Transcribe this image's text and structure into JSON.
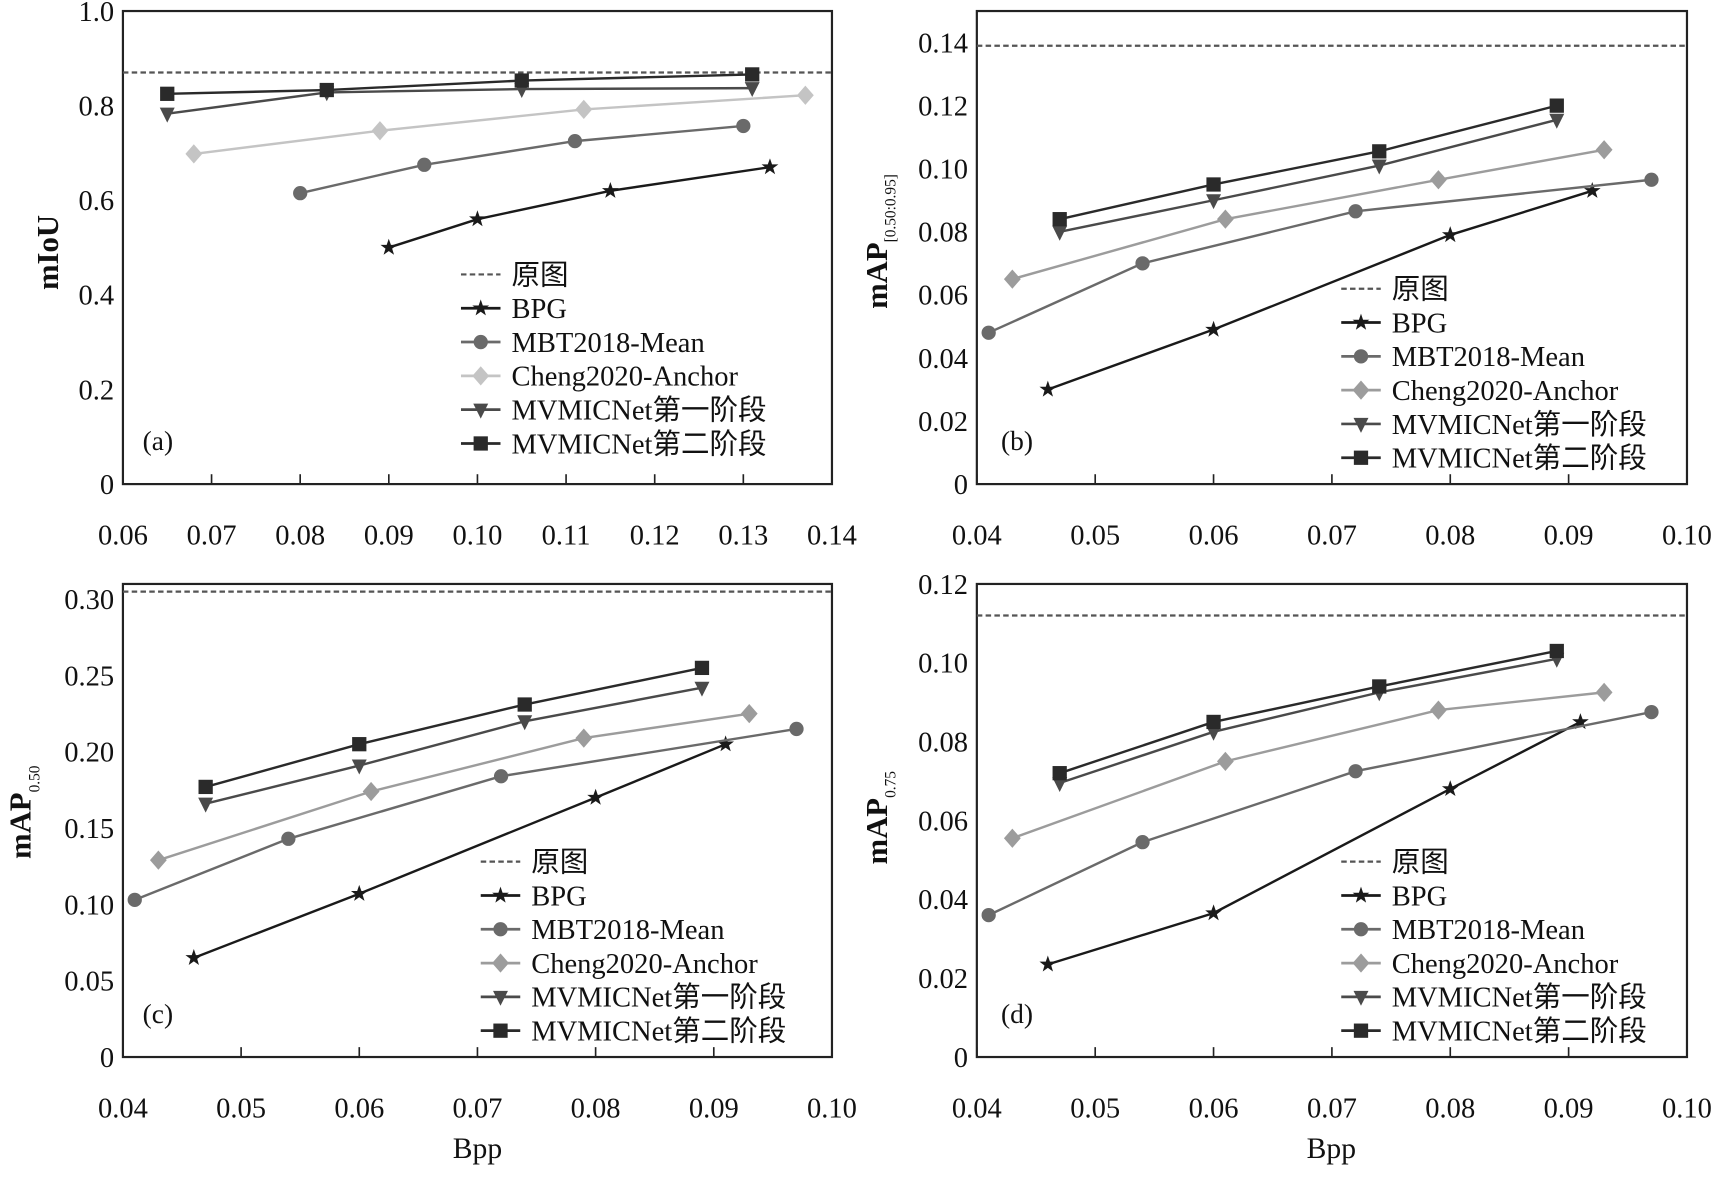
{
  "chart_data": [
    {
      "type": "line",
      "panel_label": "(a)",
      "ylabel": "mIoU",
      "ylabel_sub": "",
      "xlabel": "",
      "xlim": [
        0.06,
        0.14
      ],
      "ylim": [
        0,
        1.0
      ],
      "xticks": [
        "0.06",
        "0.07",
        "0.08",
        "0.09",
        "0.10",
        "0.11",
        "0.12",
        "0.13",
        "0.14"
      ],
      "yticks": [
        "0",
        "0.2",
        "0.4",
        "0.6",
        "0.8",
        "1.0"
      ],
      "yticks_values": [
        0,
        0.2,
        0.4,
        0.6,
        0.8,
        1.0
      ],
      "reference": {
        "name": "原图",
        "value": 0.87
      },
      "series": [
        {
          "name": "BPG",
          "marker": "star",
          "color": "#1a1a1a",
          "x": [
            0.09,
            0.1,
            0.115,
            0.133
          ],
          "y": [
            0.5,
            0.56,
            0.62,
            0.67
          ]
        },
        {
          "name": "MBT2018-Mean",
          "marker": "circle",
          "color": "#6a6a6a",
          "x": [
            0.08,
            0.094,
            0.111,
            0.13
          ],
          "y": [
            0.615,
            0.675,
            0.725,
            0.757
          ]
        },
        {
          "name": "Cheng2020-Anchor",
          "marker": "diamond",
          "color": "#c4c4c4",
          "x": [
            0.068,
            0.089,
            0.112,
            0.137
          ],
          "y": [
            0.698,
            0.747,
            0.792,
            0.822
          ]
        },
        {
          "name": "MVMICNet第一阶段",
          "marker": "triangle-down",
          "color": "#4a4a4a",
          "x": [
            0.065,
            0.083,
            0.105,
            0.131
          ],
          "y": [
            0.783,
            0.828,
            0.835,
            0.837
          ]
        },
        {
          "name": "MVMICNet第二阶段",
          "marker": "square",
          "color": "#2a2a2a",
          "x": [
            0.065,
            0.083,
            0.105,
            0.131
          ],
          "y": [
            0.825,
            0.833,
            0.853,
            0.866
          ]
        }
      ]
    },
    {
      "type": "line",
      "panel_label": "(b)",
      "ylabel": "mAP",
      "ylabel_sub": "[0.50:0.95]",
      "xlabel": "",
      "xlim": [
        0.04,
        0.1
      ],
      "ylim": [
        0,
        0.15
      ],
      "xticks": [
        "0.04",
        "0.05",
        "0.06",
        "0.07",
        "0.08",
        "0.09",
        "0.10"
      ],
      "yticks": [
        "0",
        "0.02",
        "0.04",
        "0.06",
        "0.08",
        "0.10",
        "0.12",
        "0.14"
      ],
      "yticks_values": [
        0,
        0.02,
        0.04,
        0.06,
        0.08,
        0.1,
        0.12,
        0.14
      ],
      "reference": {
        "name": "原图",
        "value": 0.139
      },
      "series": [
        {
          "name": "BPG",
          "marker": "star",
          "color": "#1a1a1a",
          "x": [
            0.046,
            0.06,
            0.08,
            0.092
          ],
          "y": [
            0.03,
            0.049,
            0.079,
            0.093
          ]
        },
        {
          "name": "MBT2018-Mean",
          "marker": "circle",
          "color": "#6a6a6a",
          "x": [
            0.041,
            0.054,
            0.072,
            0.097
          ],
          "y": [
            0.048,
            0.07,
            0.0865,
            0.0965
          ]
        },
        {
          "name": "Cheng2020-Anchor",
          "marker": "diamond",
          "color": "#9c9c9c",
          "x": [
            0.043,
            0.061,
            0.079,
            0.093
          ],
          "y": [
            0.065,
            0.084,
            0.0965,
            0.106
          ]
        },
        {
          "name": "MVMICNet第一阶段",
          "marker": "triangle-down",
          "color": "#4a4a4a",
          "x": [
            0.047,
            0.06,
            0.074,
            0.089
          ],
          "y": [
            0.08,
            0.09,
            0.101,
            0.1155
          ]
        },
        {
          "name": "MVMICNet第二阶段",
          "marker": "square",
          "color": "#2a2a2a",
          "x": [
            0.047,
            0.06,
            0.074,
            0.089
          ],
          "y": [
            0.084,
            0.095,
            0.1055,
            0.12
          ]
        }
      ]
    },
    {
      "type": "line",
      "panel_label": "(c)",
      "ylabel": "mAP",
      "ylabel_sub": "0.50",
      "xlabel": "Bpp",
      "xlim": [
        0.04,
        0.1
      ],
      "ylim": [
        0,
        0.31
      ],
      "xticks": [
        "0.04",
        "0.05",
        "0.06",
        "0.07",
        "0.08",
        "0.09",
        "0.10"
      ],
      "yticks": [
        "0",
        "0.05",
        "0.10",
        "0.15",
        "0.20",
        "0.25",
        "0.30"
      ],
      "yticks_values": [
        0,
        0.05,
        0.1,
        0.15,
        0.2,
        0.25,
        0.3
      ],
      "reference": {
        "name": "原图",
        "value": 0.305
      },
      "series": [
        {
          "name": "BPG",
          "marker": "star",
          "color": "#1a1a1a",
          "x": [
            0.046,
            0.06,
            0.08,
            0.091
          ],
          "y": [
            0.065,
            0.107,
            0.17,
            0.205
          ]
        },
        {
          "name": "MBT2018-Mean",
          "marker": "circle",
          "color": "#6a6a6a",
          "x": [
            0.041,
            0.054,
            0.072,
            0.097
          ],
          "y": [
            0.103,
            0.143,
            0.184,
            0.215
          ]
        },
        {
          "name": "Cheng2020-Anchor",
          "marker": "diamond",
          "color": "#9c9c9c",
          "x": [
            0.043,
            0.061,
            0.079,
            0.093
          ],
          "y": [
            0.129,
            0.174,
            0.209,
            0.225
          ]
        },
        {
          "name": "MVMICNet第一阶段",
          "marker": "triangle-down",
          "color": "#4a4a4a",
          "x": [
            0.047,
            0.06,
            0.074,
            0.089
          ],
          "y": [
            0.166,
            0.191,
            0.22,
            0.242
          ]
        },
        {
          "name": "MVMICNet第二阶段",
          "marker": "square",
          "color": "#2a2a2a",
          "x": [
            0.047,
            0.06,
            0.074,
            0.089
          ],
          "y": [
            0.177,
            0.205,
            0.231,
            0.255
          ]
        }
      ]
    },
    {
      "type": "line",
      "panel_label": "(d)",
      "ylabel": "mAP",
      "ylabel_sub": "0.75",
      "xlabel": "Bpp",
      "xlim": [
        0.04,
        0.1
      ],
      "ylim": [
        0,
        0.12
      ],
      "xticks": [
        "0.04",
        "0.05",
        "0.06",
        "0.07",
        "0.08",
        "0.09",
        "0.10"
      ],
      "yticks": [
        "0",
        "0.02",
        "0.04",
        "0.06",
        "0.08",
        "0.10",
        "0.12"
      ],
      "yticks_values": [
        0,
        0.02,
        0.04,
        0.06,
        0.08,
        0.1,
        0.12
      ],
      "reference": {
        "name": "原图",
        "value": 0.112
      },
      "series": [
        {
          "name": "BPG",
          "marker": "star",
          "color": "#1a1a1a",
          "x": [
            0.046,
            0.06,
            0.08,
            0.091
          ],
          "y": [
            0.0235,
            0.0365,
            0.068,
            0.085
          ]
        },
        {
          "name": "MBT2018-Mean",
          "marker": "circle",
          "color": "#6a6a6a",
          "x": [
            0.041,
            0.054,
            0.072,
            0.097
          ],
          "y": [
            0.036,
            0.0545,
            0.0725,
            0.0875
          ]
        },
        {
          "name": "Cheng2020-Anchor",
          "marker": "diamond",
          "color": "#9c9c9c",
          "x": [
            0.043,
            0.061,
            0.079,
            0.093
          ],
          "y": [
            0.0555,
            0.075,
            0.088,
            0.0925
          ]
        },
        {
          "name": "MVMICNet第一阶段",
          "marker": "triangle-down",
          "color": "#4a4a4a",
          "x": [
            0.047,
            0.06,
            0.074,
            0.089
          ],
          "y": [
            0.0695,
            0.0825,
            0.0925,
            0.101
          ]
        },
        {
          "name": "MVMICNet第二阶段",
          "marker": "square",
          "color": "#2a2a2a",
          "x": [
            0.047,
            0.06,
            0.074,
            0.089
          ],
          "y": [
            0.072,
            0.085,
            0.094,
            0.103
          ]
        }
      ]
    }
  ]
}
